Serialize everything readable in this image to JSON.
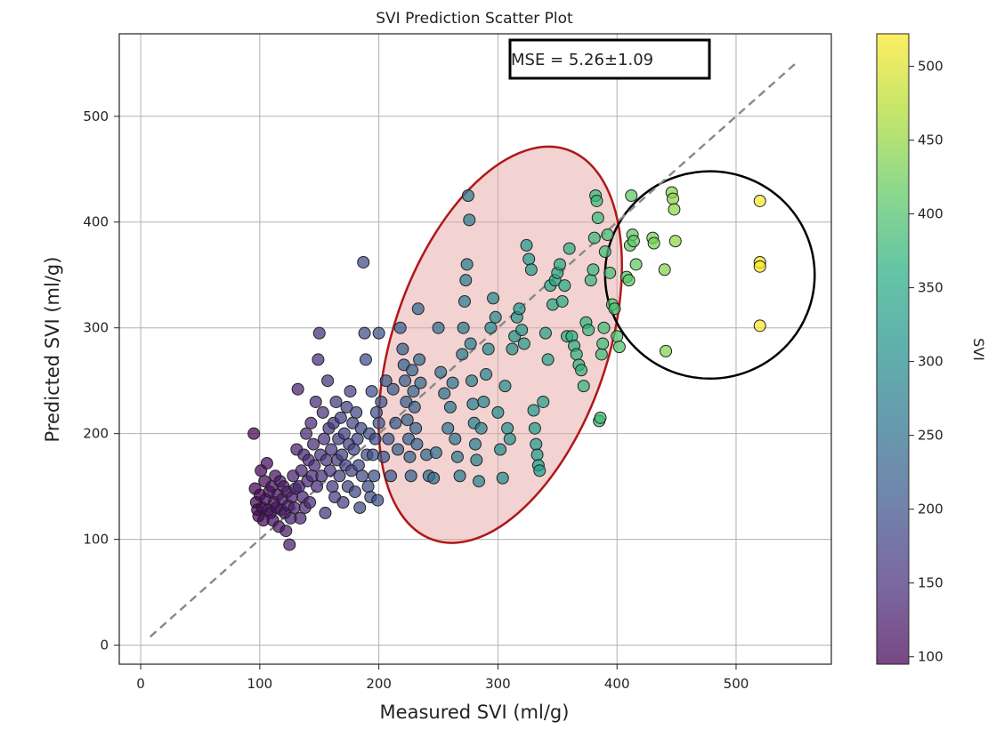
{
  "chart_data": {
    "type": "scatter",
    "title": "SVI Prediction Scatter Plot",
    "xlabel": "Measured SVI (ml/g)",
    "ylabel": "Predicted SVI (ml/g)",
    "xlim": [
      -18,
      580
    ],
    "ylim": [
      -18,
      578
    ],
    "xticks": [
      0,
      100,
      200,
      300,
      400,
      500
    ],
    "yticks": [
      0,
      100,
      200,
      300,
      400,
      500
    ],
    "grid": true,
    "colormap": "viridis",
    "colorbar": {
      "label": "SVI",
      "range": [
        95,
        522
      ],
      "ticks": [
        100,
        150,
        200,
        250,
        300,
        350,
        400,
        450,
        500
      ]
    },
    "annotation": "MSE = 5.26±1.09",
    "reference_line": {
      "x": [
        8,
        550
      ],
      "y": [
        8,
        550
      ],
      "style": "dashed",
      "color": "#888888"
    },
    "highlight_regions": [
      {
        "shape": "ellipse",
        "center": [
          302,
          284
        ],
        "semi_axes": [
          90,
          195
        ],
        "rotation_deg": 19,
        "fill": "#e8a6a6",
        "stroke": "#b01818"
      },
      {
        "shape": "ellipse",
        "center": [
          478,
          350
        ],
        "semi_axes": [
          88,
          98
        ],
        "rotation_deg": 0,
        "fill": "none",
        "stroke": "#000000"
      }
    ],
    "points": [
      [
        95,
        200
      ],
      [
        96,
        148
      ],
      [
        97,
        135
      ],
      [
        98,
        128
      ],
      [
        99,
        122
      ],
      [
        100,
        142
      ],
      [
        101,
        165
      ],
      [
        102,
        130
      ],
      [
        103,
        118
      ],
      [
        104,
        155
      ],
      [
        105,
        138
      ],
      [
        106,
        172
      ],
      [
        107,
        128
      ],
      [
        108,
        145
      ],
      [
        109,
        125
      ],
      [
        110,
        150
      ],
      [
        111,
        118
      ],
      [
        112,
        135
      ],
      [
        113,
        160
      ],
      [
        114,
        130
      ],
      [
        115,
        142
      ],
      [
        116,
        112
      ],
      [
        117,
        155
      ],
      [
        118,
        128
      ],
      [
        119,
        138
      ],
      [
        120,
        150
      ],
      [
        121,
        125
      ],
      [
        122,
        108
      ],
      [
        123,
        145
      ],
      [
        124,
        132
      ],
      [
        125,
        95
      ],
      [
        126,
        120
      ],
      [
        127,
        140
      ],
      [
        128,
        160
      ],
      [
        129,
        130
      ],
      [
        130,
        148
      ],
      [
        131,
        185
      ],
      [
        132,
        242
      ],
      [
        133,
        150
      ],
      [
        134,
        120
      ],
      [
        135,
        165
      ],
      [
        136,
        140
      ],
      [
        137,
        180
      ],
      [
        138,
        130
      ],
      [
        139,
        200
      ],
      [
        140,
        155
      ],
      [
        141,
        175
      ],
      [
        142,
        135
      ],
      [
        143,
        210
      ],
      [
        144,
        160
      ],
      [
        145,
        190
      ],
      [
        146,
        170
      ],
      [
        147,
        230
      ],
      [
        148,
        150
      ],
      [
        149,
        270
      ],
      [
        150,
        295
      ],
      [
        151,
        180
      ],
      [
        152,
        160
      ],
      [
        153,
        220
      ],
      [
        154,
        195
      ],
      [
        155,
        125
      ],
      [
        156,
        175
      ],
      [
        157,
        250
      ],
      [
        158,
        205
      ],
      [
        159,
        165
      ],
      [
        160,
        185
      ],
      [
        161,
        150
      ],
      [
        162,
        210
      ],
      [
        163,
        140
      ],
      [
        164,
        230
      ],
      [
        165,
        175
      ],
      [
        166,
        195
      ],
      [
        167,
        160
      ],
      [
        168,
        215
      ],
      [
        169,
        180
      ],
      [
        170,
        135
      ],
      [
        171,
        200
      ],
      [
        172,
        170
      ],
      [
        173,
        225
      ],
      [
        174,
        150
      ],
      [
        175,
        190
      ],
      [
        176,
        240
      ],
      [
        177,
        165
      ],
      [
        178,
        210
      ],
      [
        179,
        185
      ],
      [
        180,
        145
      ],
      [
        181,
        220
      ],
      [
        182,
        195
      ],
      [
        183,
        170
      ],
      [
        184,
        130
      ],
      [
        185,
        205
      ],
      [
        186,
        160
      ],
      [
        187,
        362
      ],
      [
        188,
        295
      ],
      [
        189,
        270
      ],
      [
        190,
        180
      ],
      [
        191,
        150
      ],
      [
        192,
        200
      ],
      [
        193,
        140
      ],
      [
        194,
        240
      ],
      [
        195,
        180
      ],
      [
        196,
        160
      ],
      [
        197,
        195
      ],
      [
        198,
        220
      ],
      [
        199,
        137
      ],
      [
        200,
        295
      ],
      [
        200,
        210
      ],
      [
        202,
        230
      ],
      [
        204,
        178
      ],
      [
        206,
        250
      ],
      [
        208,
        195
      ],
      [
        210,
        160
      ],
      [
        212,
        242
      ],
      [
        214,
        210
      ],
      [
        216,
        185
      ],
      [
        218,
        300
      ],
      [
        220,
        280
      ],
      [
        221,
        265
      ],
      [
        222,
        250
      ],
      [
        223,
        230
      ],
      [
        224,
        213
      ],
      [
        225,
        195
      ],
      [
        226,
        178
      ],
      [
        227,
        160
      ],
      [
        228,
        260
      ],
      [
        229,
        240
      ],
      [
        230,
        225
      ],
      [
        231,
        205
      ],
      [
        232,
        190
      ],
      [
        233,
        318
      ],
      [
        234,
        270
      ],
      [
        235,
        248
      ],
      [
        240,
        180
      ],
      [
        242,
        160
      ],
      [
        246,
        158
      ],
      [
        248,
        182
      ],
      [
        250,
        300
      ],
      [
        252,
        258
      ],
      [
        255,
        238
      ],
      [
        258,
        205
      ],
      [
        260,
        225
      ],
      [
        262,
        248
      ],
      [
        264,
        195
      ],
      [
        266,
        178
      ],
      [
        268,
        160
      ],
      [
        270,
        275
      ],
      [
        271,
        300
      ],
      [
        272,
        325
      ],
      [
        273,
        345
      ],
      [
        274,
        360
      ],
      [
        275,
        425
      ],
      [
        276,
        402
      ],
      [
        277,
        285
      ],
      [
        278,
        250
      ],
      [
        279,
        228
      ],
      [
        280,
        210
      ],
      [
        281,
        190
      ],
      [
        282,
        175
      ],
      [
        284,
        155
      ],
      [
        286,
        205
      ],
      [
        288,
        230
      ],
      [
        290,
        256
      ],
      [
        292,
        280
      ],
      [
        294,
        300
      ],
      [
        296,
        328
      ],
      [
        298,
        310
      ],
      [
        300,
        220
      ],
      [
        302,
        185
      ],
      [
        304,
        158
      ],
      [
        306,
        245
      ],
      [
        308,
        205
      ],
      [
        310,
        195
      ],
      [
        312,
        280
      ],
      [
        314,
        292
      ],
      [
        316,
        310
      ],
      [
        318,
        318
      ],
      [
        320,
        298
      ],
      [
        322,
        285
      ],
      [
        324,
        378
      ],
      [
        326,
        365
      ],
      [
        328,
        355
      ],
      [
        330,
        222
      ],
      [
        331,
        205
      ],
      [
        332,
        190
      ],
      [
        333,
        180
      ],
      [
        334,
        170
      ],
      [
        335,
        165
      ],
      [
        338,
        230
      ],
      [
        340,
        295
      ],
      [
        342,
        270
      ],
      [
        344,
        340
      ],
      [
        346,
        322
      ],
      [
        348,
        345
      ],
      [
        350,
        352
      ],
      [
        352,
        360
      ],
      [
        354,
        325
      ],
      [
        356,
        340
      ],
      [
        358,
        292
      ],
      [
        360,
        375
      ],
      [
        362,
        292
      ],
      [
        364,
        283
      ],
      [
        366,
        275
      ],
      [
        368,
        265
      ],
      [
        370,
        260
      ],
      [
        372,
        245
      ],
      [
        374,
        305
      ],
      [
        376,
        298
      ],
      [
        378,
        345
      ],
      [
        380,
        355
      ],
      [
        381,
        385
      ],
      [
        382,
        425
      ],
      [
        383,
        420
      ],
      [
        384,
        404
      ],
      [
        385,
        212
      ],
      [
        386,
        215
      ],
      [
        387,
        275
      ],
      [
        388,
        285
      ],
      [
        389,
        300
      ],
      [
        390,
        372
      ],
      [
        392,
        388
      ],
      [
        394,
        352
      ],
      [
        396,
        322
      ],
      [
        398,
        318
      ],
      [
        400,
        292
      ],
      [
        402,
        282
      ],
      [
        408,
        348
      ],
      [
        410,
        345
      ],
      [
        411,
        378
      ],
      [
        412,
        425
      ],
      [
        413,
        388
      ],
      [
        414,
        382
      ],
      [
        416,
        360
      ],
      [
        430,
        385
      ],
      [
        431,
        380
      ],
      [
        440,
        355
      ],
      [
        441,
        278
      ],
      [
        446,
        428
      ],
      [
        447,
        422
      ],
      [
        448,
        412
      ],
      [
        449,
        382
      ],
      [
        520,
        420
      ],
      [
        520,
        362
      ],
      [
        520,
        358
      ],
      [
        520,
        302
      ]
    ]
  }
}
